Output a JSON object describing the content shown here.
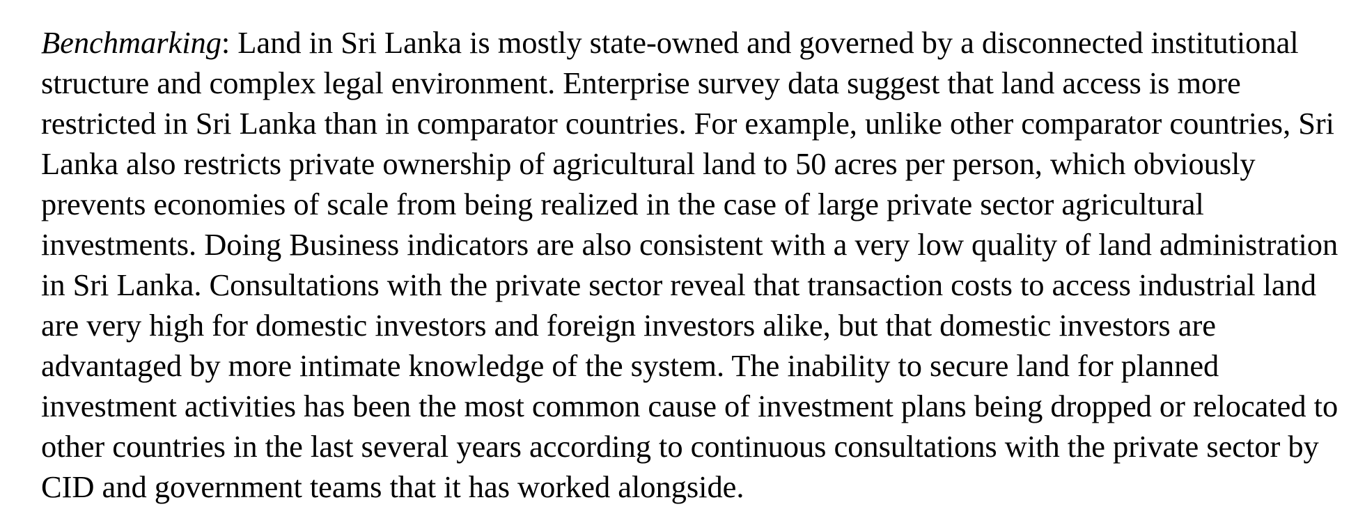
{
  "paragraph": {
    "lead_italic": "Benchmarking",
    "lines": [
      ": Land in Sri Lanka is mostly state-owned and governed by a disconnected institutional",
      "structure and complex legal environment. Enterprise survey data suggest that land access is more",
      "restricted in Sri Lanka than in comparator countries.  For example, unlike other comparator countries, Sri",
      "Lanka also restricts private ownership of agricultural land to 50 acres per person, which obviously",
      "prevents economies of scale from being realized in the case of large private sector agricultural",
      "investments. Doing Business indicators are also consistent with a very low quality of land administration",
      "in Sri Lanka.  Consultations with the private sector reveal that transaction costs to access industrial land",
      "are very high for domestic investors and foreign investors alike, but that domestic investors are",
      "advantaged by more intimate knowledge of the system. The inability to secure land for planned",
      "investment activities has been the most common cause of investment plans being dropped or relocated to",
      "other countries in the last several years according to continuous consultations with the private sector by",
      "CID and government teams that it has worked alongside."
    ]
  }
}
